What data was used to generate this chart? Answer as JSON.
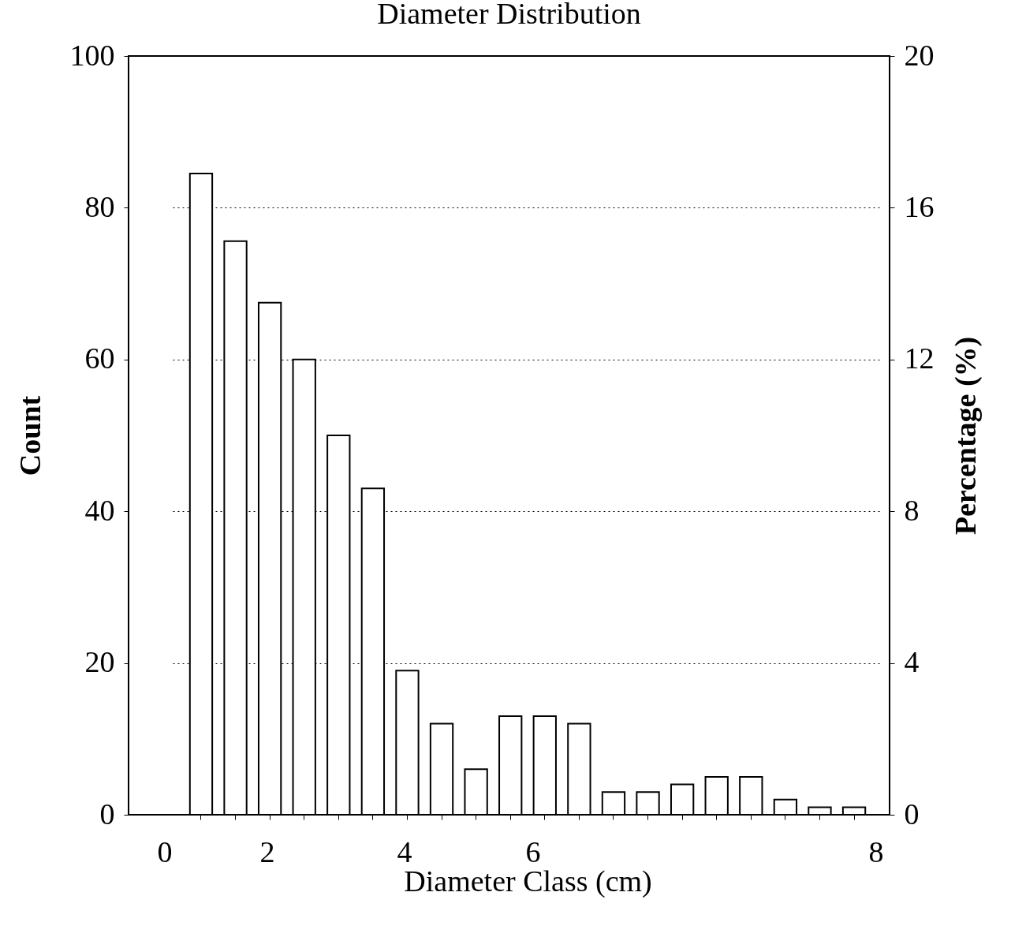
{
  "chart_data": {
    "type": "bar",
    "title": "Diameter Distribution",
    "xlabel": "Diameter Class (cm)",
    "ylabel": "Count",
    "y2label": "Percentage (%)",
    "categories": [
      null,
      null,
      null,
      null,
      null,
      null,
      null,
      null,
      null,
      null,
      null,
      null,
      null,
      null,
      null,
      null,
      null,
      null,
      null,
      null
    ],
    "values": [
      84.5,
      75.6,
      67.5,
      60,
      50,
      43,
      19,
      12,
      6,
      13,
      13,
      12,
      3,
      3,
      4,
      5,
      5,
      2,
      1,
      1
    ],
    "color": "#ffffff",
    "annotations": [
      "0",
      "2",
      "4",
      "6",
      "8"
    ],
    "ylim": [
      0,
      100
    ],
    "yticks": [
      0,
      20,
      40,
      60,
      80,
      100
    ],
    "y2lim": [
      0,
      20
    ],
    "y2ticks": [
      0,
      4,
      8,
      12,
      16,
      20
    ],
    "grid": "y"
  }
}
